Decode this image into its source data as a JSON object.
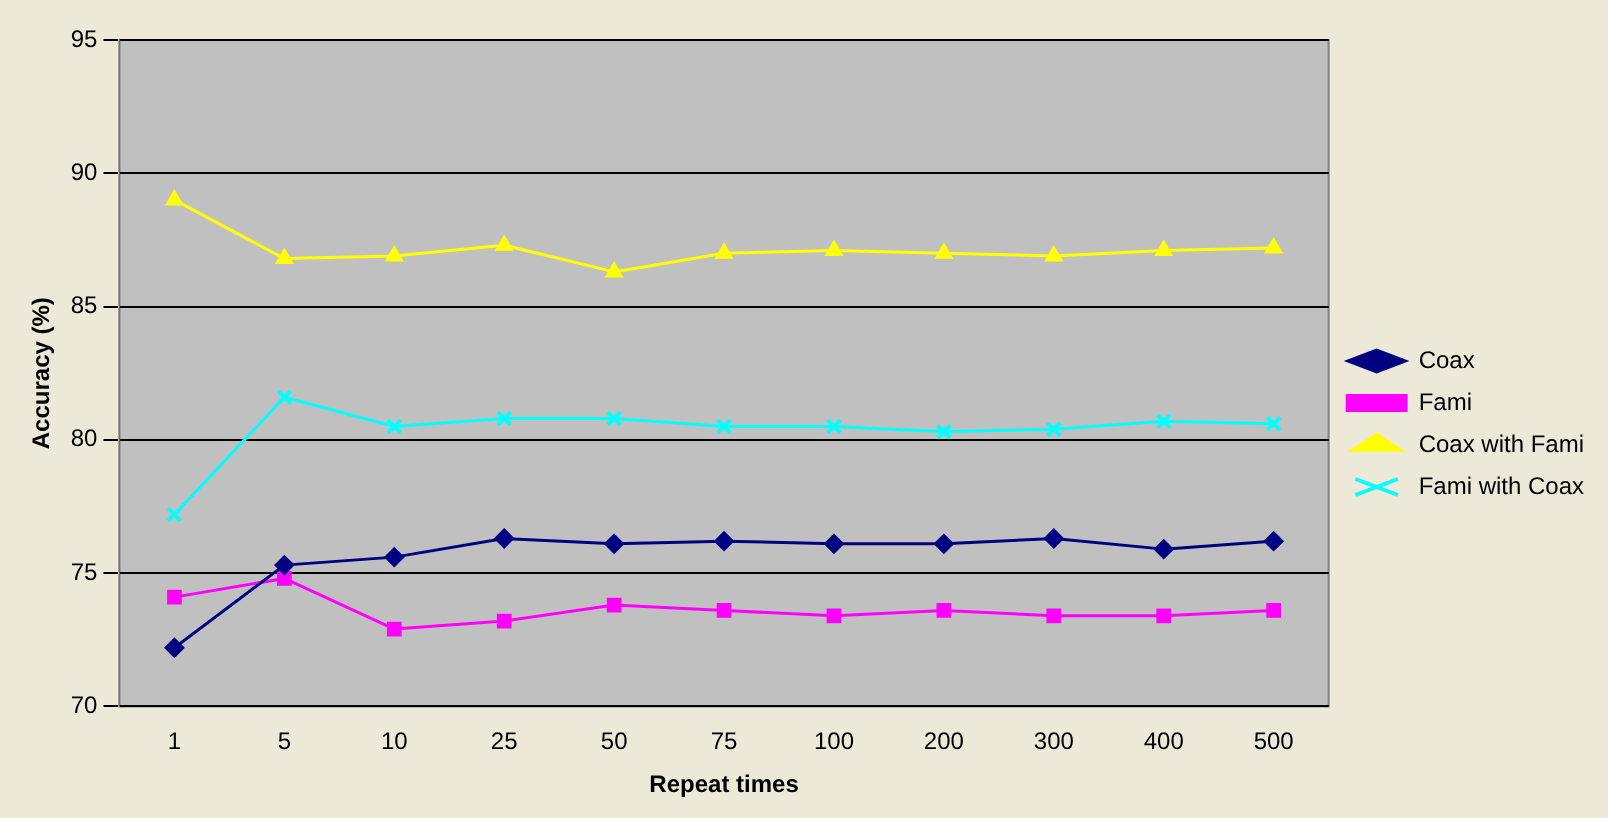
{
  "chart_data": {
    "type": "line",
    "xlabel": "Repeat times",
    "ylabel": "Accuracy (%)",
    "categories": [
      "1",
      "5",
      "10",
      "25",
      "50",
      "75",
      "100",
      "200",
      "300",
      "400",
      "500"
    ],
    "series": [
      {
        "name": "Coax",
        "color": "#000080",
        "marker": "diamond",
        "values": [
          72.2,
          75.3,
          75.6,
          76.3,
          76.1,
          76.2,
          76.1,
          76.1,
          76.3,
          75.9,
          76.2
        ]
      },
      {
        "name": "Fami",
        "color": "#ff00ff",
        "marker": "square",
        "values": [
          74.1,
          74.8,
          72.9,
          73.2,
          73.8,
          73.6,
          73.4,
          73.6,
          73.4,
          73.4,
          73.6
        ]
      },
      {
        "name": "Coax with Fami",
        "color": "#ffff00",
        "marker": "triangle",
        "values": [
          89.0,
          86.8,
          86.9,
          87.3,
          86.3,
          87.0,
          87.1,
          87.0,
          86.9,
          87.1,
          87.2
        ]
      },
      {
        "name": "Fami with Coax",
        "color": "#00ffff",
        "marker": "cross",
        "values": [
          77.2,
          81.6,
          80.5,
          80.8,
          80.8,
          80.5,
          80.5,
          80.3,
          80.4,
          80.7,
          80.6
        ]
      }
    ],
    "ylim": [
      70,
      95
    ],
    "yticks": [
      70,
      75,
      80,
      85,
      90,
      95
    ],
    "grid": "y",
    "legend": "right"
  }
}
